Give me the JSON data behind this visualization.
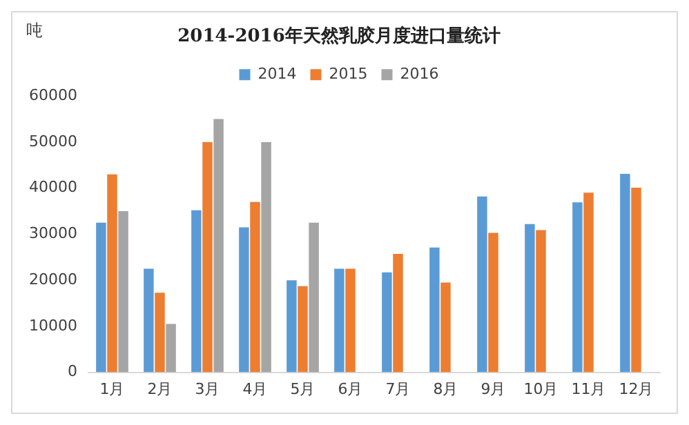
{
  "chart_data": {
    "type": "bar",
    "title": "2014-2016年天然乳胶月度进口量统计",
    "ylabel": "吨",
    "categories": [
      "1月",
      "2月",
      "3月",
      "4月",
      "5月",
      "6月",
      "7月",
      "8月",
      "9月",
      "10月",
      "11月",
      "12月"
    ],
    "series": [
      {
        "name": "2014",
        "color": "#5b9bd5",
        "values": [
          32500,
          22500,
          35200,
          31500,
          20000,
          22500,
          21700,
          27100,
          38200,
          32200,
          36900,
          43100
        ]
      },
      {
        "name": "2015",
        "color": "#ed7d31",
        "values": [
          43000,
          17300,
          50000,
          37000,
          18700,
          22500,
          25700,
          19500,
          30300,
          30900,
          39000,
          40100
        ]
      },
      {
        "name": "2016",
        "color": "#a5a5a5",
        "values": [
          35000,
          10500,
          55000,
          50000,
          32500,
          null,
          null,
          null,
          null,
          null,
          null,
          null
        ]
      }
    ],
    "ylim": [
      0,
      60000
    ],
    "yticks": [
      0,
      10000,
      20000,
      30000,
      40000,
      50000,
      60000
    ],
    "grid": false,
    "legend": "top"
  }
}
